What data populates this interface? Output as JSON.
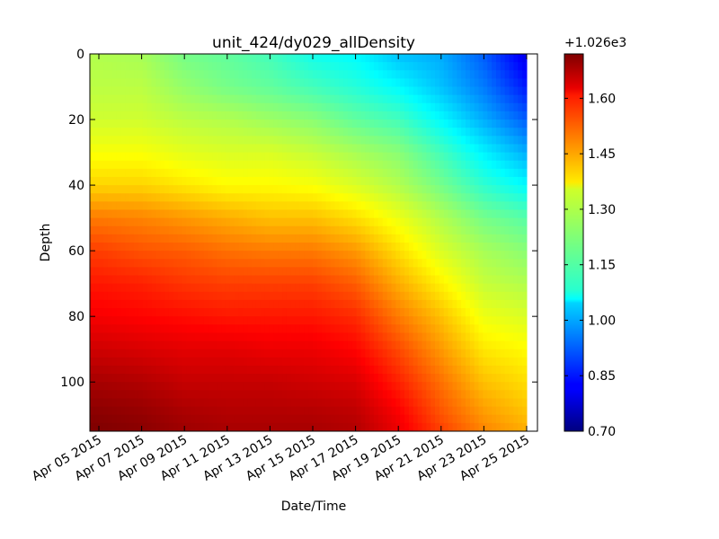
{
  "chart_data": {
    "type": "heatmap",
    "title": "unit_424/dy029_allDensity",
    "xlabel": "Date/Time",
    "ylabel": "Depth",
    "x_ticks": [
      "Apr 05 2015",
      "Apr 07 2015",
      "Apr 09 2015",
      "Apr 11 2015",
      "Apr 13 2015",
      "Apr 15 2015",
      "Apr 17 2015",
      "Apr 19 2015",
      "Apr 21 2015",
      "Apr 23 2015",
      "Apr 25 2015"
    ],
    "xlim": [
      "2015-04-05",
      "2015-04-25"
    ],
    "y_ticks": [
      0,
      20,
      40,
      60,
      80,
      100
    ],
    "ylim": [
      115,
      0
    ],
    "y_inverted": true,
    "colorbar": {
      "offset_label": "+1.026e3",
      "ticks": [
        "0.70",
        "0.85",
        "1.00",
        "1.15",
        "1.30",
        "1.45",
        "1.60"
      ],
      "range": [
        0.7,
        1.72
      ],
      "colormap": "jet"
    },
    "density_anomaly_grid": {
      "dates": [
        "2015-04-05",
        "2015-04-07",
        "2015-04-09",
        "2015-04-11",
        "2015-04-13",
        "2015-04-15",
        "2015-04-17",
        "2015-04-19",
        "2015-04-21",
        "2015-04-23",
        "2015-04-25"
      ],
      "depths": [
        0,
        10,
        20,
        30,
        40,
        50,
        60,
        70,
        80,
        90,
        100,
        110,
        115
      ],
      "values": [
        [
          1.26,
          1.25,
          1.2,
          1.18,
          1.15,
          1.1,
          1.08,
          1.02,
          1.0,
          0.92,
          0.8
        ],
        [
          1.27,
          1.27,
          1.23,
          1.2,
          1.18,
          1.15,
          1.12,
          1.08,
          1.02,
          0.95,
          0.85
        ],
        [
          1.29,
          1.29,
          1.27,
          1.26,
          1.24,
          1.22,
          1.18,
          1.15,
          1.08,
          1.0,
          0.92
        ],
        [
          1.33,
          1.33,
          1.31,
          1.3,
          1.3,
          1.28,
          1.25,
          1.22,
          1.15,
          1.07,
          1.0
        ],
        [
          1.38,
          1.38,
          1.36,
          1.34,
          1.34,
          1.33,
          1.3,
          1.26,
          1.2,
          1.13,
          1.08
        ],
        [
          1.47,
          1.46,
          1.44,
          1.42,
          1.4,
          1.4,
          1.37,
          1.32,
          1.26,
          1.2,
          1.17
        ],
        [
          1.53,
          1.51,
          1.5,
          1.48,
          1.47,
          1.47,
          1.44,
          1.37,
          1.3,
          1.25,
          1.22
        ],
        [
          1.57,
          1.56,
          1.54,
          1.53,
          1.53,
          1.53,
          1.5,
          1.42,
          1.35,
          1.28,
          1.26
        ],
        [
          1.6,
          1.59,
          1.58,
          1.57,
          1.57,
          1.57,
          1.55,
          1.47,
          1.4,
          1.32,
          1.3
        ],
        [
          1.64,
          1.63,
          1.62,
          1.62,
          1.61,
          1.61,
          1.59,
          1.52,
          1.44,
          1.36,
          1.34
        ],
        [
          1.68,
          1.67,
          1.65,
          1.65,
          1.65,
          1.64,
          1.63,
          1.56,
          1.48,
          1.4,
          1.37
        ],
        [
          1.71,
          1.7,
          1.68,
          1.67,
          1.67,
          1.67,
          1.66,
          1.6,
          1.51,
          1.44,
          1.4
        ],
        [
          1.72,
          1.71,
          1.69,
          1.68,
          1.68,
          1.68,
          1.67,
          1.61,
          1.53,
          1.46,
          1.42
        ]
      ]
    },
    "grid": false,
    "legend": "colorbar-right"
  }
}
